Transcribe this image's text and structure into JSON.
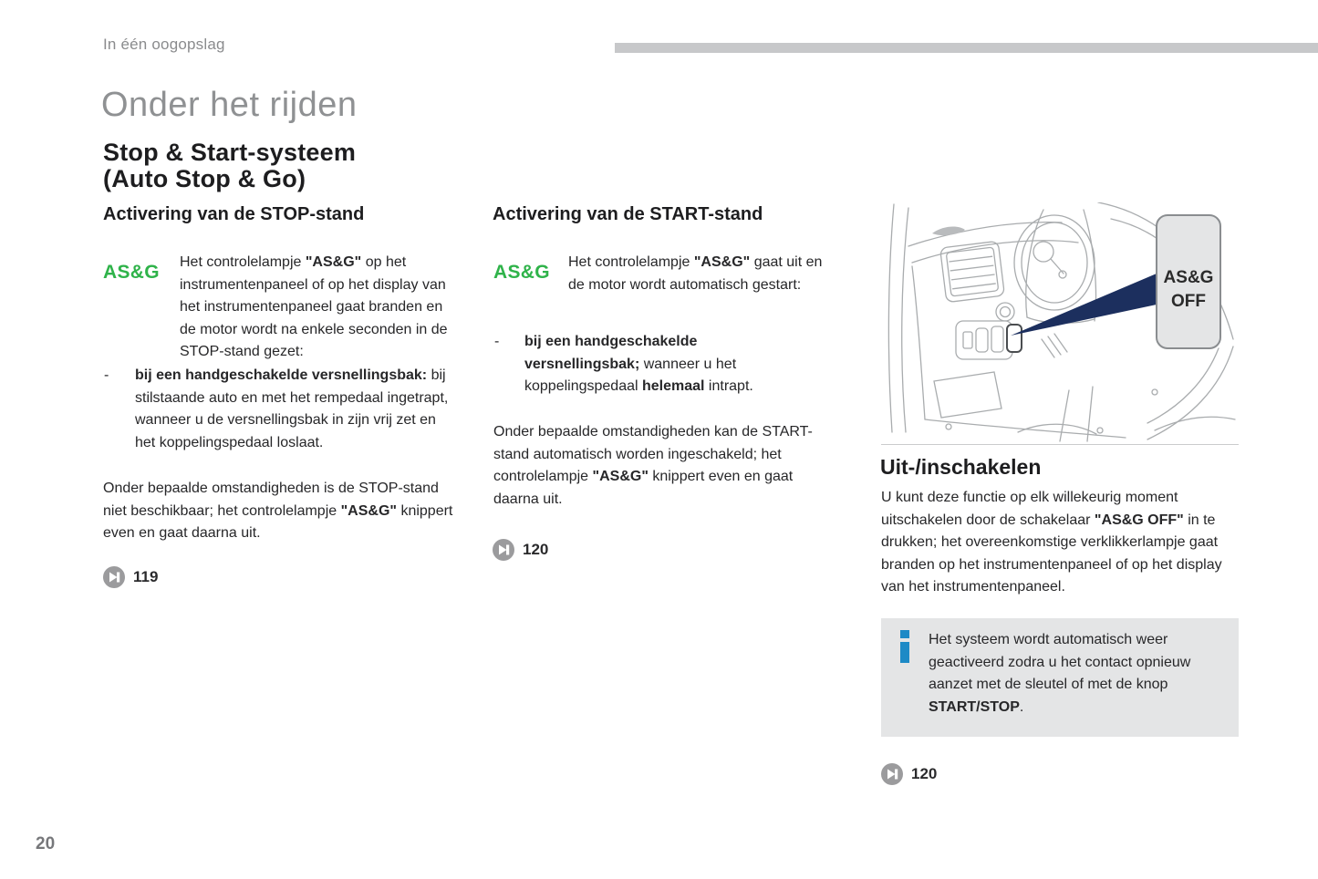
{
  "page": {
    "eyebrow": "In één oogopslag",
    "title": "Onder het rijden",
    "section_title_line1": "Stop & Start-systeem",
    "section_title_line2": "(Auto Stop & Go)",
    "page_number": "20"
  },
  "colors": {
    "asg_green": "#2fb34a",
    "arrow_navy": "#1c2f5e",
    "info_blue": "#1d8ac6",
    "topbar_gray": "#c7c8ca",
    "panel_gray": "#e4e5e6",
    "line_art_gray": "#a9acae",
    "ref_icon_gray": "#9b9b9d",
    "title_gray": "#8f9193",
    "muted_gray": "#8a8b8d",
    "text_dark": "#272729"
  },
  "columns": {
    "stop": {
      "heading": "Activering van de STOP-stand",
      "indicator_label": "AS&G",
      "intro": [
        {
          "t": "Het controlelampje "
        },
        {
          "t": "\"AS&G\"",
          "b": true
        },
        {
          "t": " op het instrumentenpaneel of op het display van het instrumentenpaneel gaat branden en de motor wordt na enkele seconden in de STOP-stand gezet:"
        }
      ],
      "bullet_dash": "-",
      "bullet": [
        {
          "t": "bij een handgeschakelde versnellingsbak:",
          "b": true
        },
        {
          "t": " bij stilstaande auto en met het rempedaal ingetrapt, wanneer u de versnellingsbak in zijn vrij zet en het koppelingspedaal loslaat."
        }
      ],
      "note": [
        {
          "t": "Onder bepaalde omstandigheden is de STOP-stand niet beschikbaar; het controlelampje "
        },
        {
          "t": "\"AS&G\"",
          "b": true
        },
        {
          "t": " knippert even en gaat daarna uit."
        }
      ],
      "page_ref": "119"
    },
    "start": {
      "heading": "Activering van de START-stand",
      "indicator_label": "AS&G",
      "intro": [
        {
          "t": "Het controlelampje "
        },
        {
          "t": "\"AS&G\"",
          "b": true
        },
        {
          "t": " gaat uit en de motor wordt automatisch gestart:"
        }
      ],
      "bullet_dash": "-",
      "bullet": [
        {
          "t": "bij een handgeschakelde versnellingsbak;",
          "b": true
        },
        {
          "t": " wanneer u het koppelingspedaal "
        },
        {
          "t": "helemaal",
          "b": true
        },
        {
          "t": " intrapt."
        }
      ],
      "note": [
        {
          "t": "Onder bepaalde omstandigheden kan de START-stand automatisch worden ingeschakeld; het controlelampje "
        },
        {
          "t": "\"AS&G\"",
          "b": true
        },
        {
          "t": " knippert even en gaat daarna uit."
        }
      ],
      "page_ref": "120"
    },
    "off": {
      "heading": "Uit-/inschakelen",
      "callout_line1": "AS&G",
      "callout_line2": "OFF",
      "body": [
        {
          "t": "U kunt deze functie op elk willekeurig moment uitschakelen door de schakelaar "
        },
        {
          "t": "\"AS&G OFF\"",
          "b": true
        },
        {
          "t": " in te drukken; het overeenkomstige verklikkerlampje gaat branden op het instrumentenpaneel of op het display van het instrumentenpaneel."
        }
      ],
      "info": [
        {
          "t": "Het systeem wordt automatisch weer geactiveerd zodra u het contact opnieuw aanzet met de sleutel of met de knop "
        },
        {
          "t": "START/STOP",
          "b": true
        },
        {
          "t": "."
        }
      ],
      "page_ref": "120"
    }
  }
}
